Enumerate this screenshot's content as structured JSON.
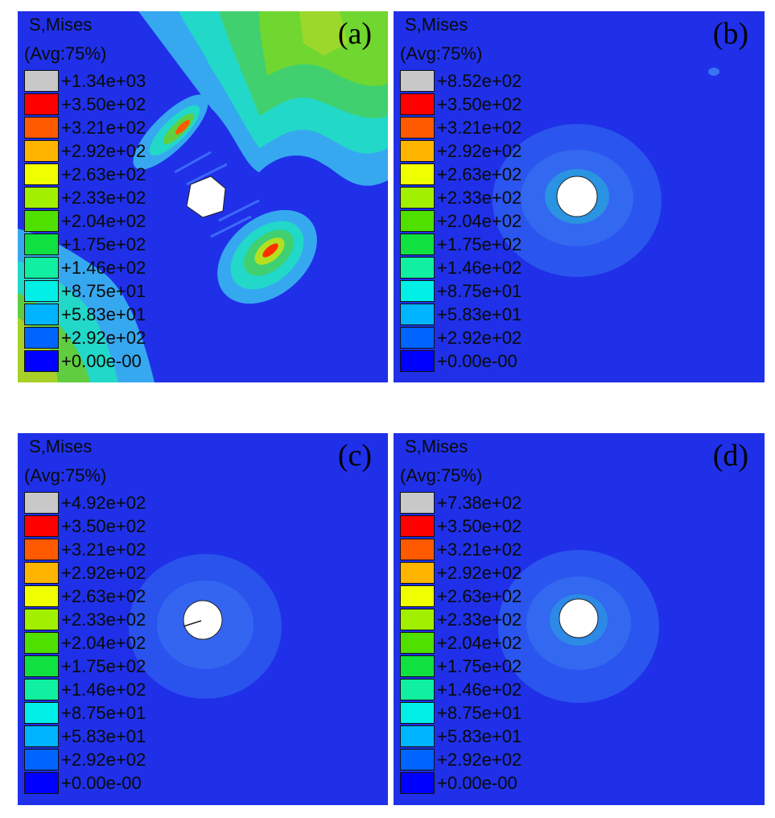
{
  "legend_colors": [
    "#c8c8c8",
    "#ff0000",
    "#ff5a00",
    "#ffb400",
    "#f0ff00",
    "#a0f000",
    "#50e000",
    "#10e040",
    "#10f0a0",
    "#00f0e8",
    "#00b4ff",
    "#0064ff",
    "#0000ff"
  ],
  "panels": [
    {
      "label": "(a)",
      "title": "S,Mises",
      "subtitle": "(Avg:75%)",
      "legend": [
        "+1.34e+03",
        "+3.50e+02",
        "+3.21e+02",
        "+2.92e+02",
        "+2.63e+02",
        "+2.33e+02",
        "+2.04e+02",
        "+1.75e+02",
        "+1.46e+02",
        "+8.75e+01",
        "+5.83e+01",
        "+2.92e+02",
        "+0.00e-00"
      ]
    },
    {
      "label": "(b)",
      "title": "S,Mises",
      "subtitle": "(Avg:75%)",
      "legend": [
        "+8.52e+02",
        "+3.50e+02",
        "+3.21e+02",
        "+2.92e+02",
        "+2.63e+02",
        "+2.33e+02",
        "+2.04e+02",
        "+1.75e+02",
        "+1.46e+02",
        "+8.75e+01",
        "+5.83e+01",
        "+2.92e+02",
        "+0.00e-00"
      ]
    },
    {
      "label": "(c)",
      "title": "S,Mises",
      "subtitle": "(Avg:75%)",
      "legend": [
        "+4.92e+02",
        "+3.50e+02",
        "+3.21e+02",
        "+2.92e+02",
        "+2.63e+02",
        "+2.33e+02",
        "+2.04e+02",
        "+1.75e+02",
        "+1.46e+02",
        "+8.75e+01",
        "+5.83e+01",
        "+2.92e+02",
        "+0.00e-00"
      ]
    },
    {
      "label": "(d)",
      "title": "S,Mises",
      "subtitle": "(Avg:75%)",
      "legend": [
        "+7.38e+02",
        "+3.50e+02",
        "+3.21e+02",
        "+2.92e+02",
        "+2.63e+02",
        "+2.33e+02",
        "+2.04e+02",
        "+1.75e+02",
        "+1.46e+02",
        "+8.75e+01",
        "+5.83e+01",
        "+2.92e+02",
        "+0.00e-00"
      ]
    }
  ]
}
